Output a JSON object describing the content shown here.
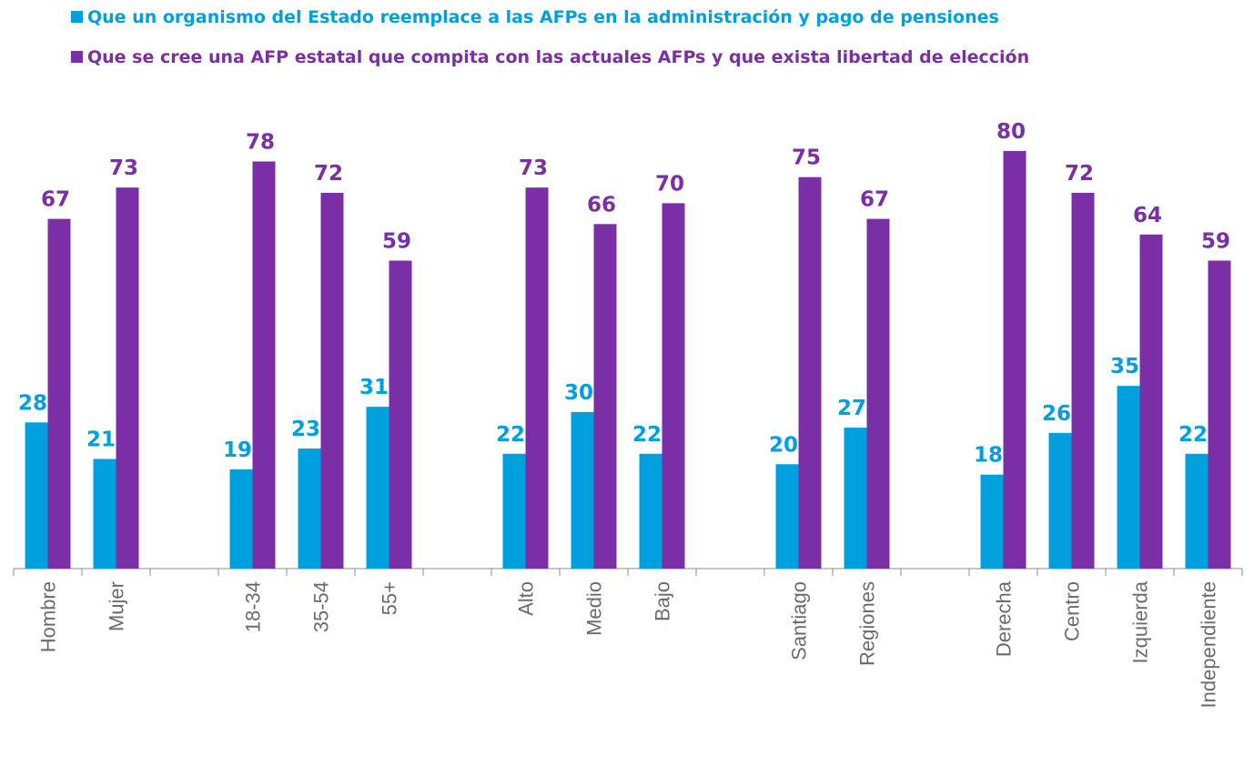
{
  "chart_data": {
    "type": "bar",
    "categories": [
      "Hombre",
      "Mujer",
      null,
      "18-34",
      "35-54",
      "55+",
      null,
      "Alto",
      "Medio",
      "Bajo",
      null,
      "Santiago",
      "Regiones",
      null,
      "Derecha",
      "Centro",
      "Izquierda",
      "Independiente"
    ],
    "series": [
      {
        "name": "Que un organismo del Estado reemplace a las AFPs en la administración y pago de pensiones",
        "color": "#00a0df",
        "values": [
          28,
          21,
          null,
          19,
          23,
          31,
          null,
          22,
          30,
          22,
          null,
          20,
          27,
          null,
          18,
          26,
          35,
          22
        ]
      },
      {
        "name": "Que se cree una AFP estatal que compita con las actuales AFPs y que exista libertad de elección",
        "color": "#7b2fa6",
        "values": [
          67,
          73,
          null,
          78,
          72,
          59,
          null,
          73,
          66,
          70,
          null,
          75,
          67,
          null,
          80,
          72,
          64,
          59
        ]
      }
    ],
    "legend": "top-left"
  }
}
